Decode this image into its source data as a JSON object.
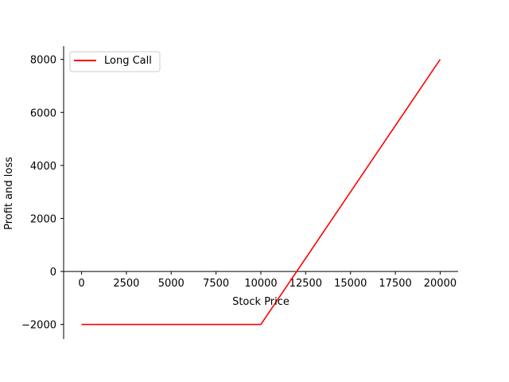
{
  "chart_data": {
    "type": "line",
    "title": "",
    "xlabel": "Stock Price",
    "ylabel": "Profit and loss",
    "xlim": [
      -1000,
      21000
    ],
    "ylim": [
      -2550,
      8500
    ],
    "xticks": [
      0,
      2500,
      5000,
      7500,
      10000,
      12500,
      15000,
      17500,
      20000
    ],
    "yticks": [
      -2000,
      0,
      2000,
      4000,
      6000,
      8000
    ],
    "xtick_labels": [
      "0",
      "2500",
      "5000",
      "7500",
      "10000",
      "12500",
      "15000",
      "17500",
      "20000"
    ],
    "ytick_labels": [
      "−2000",
      "0",
      "2000",
      "4000",
      "6000",
      "8000"
    ],
    "grid": false,
    "legend_position": "top-left",
    "series": [
      {
        "name": "Long Call",
        "color": "#ff0000",
        "x": [
          0,
          10000,
          20000
        ],
        "y": [
          -2000,
          -2000,
          8000
        ]
      }
    ]
  }
}
